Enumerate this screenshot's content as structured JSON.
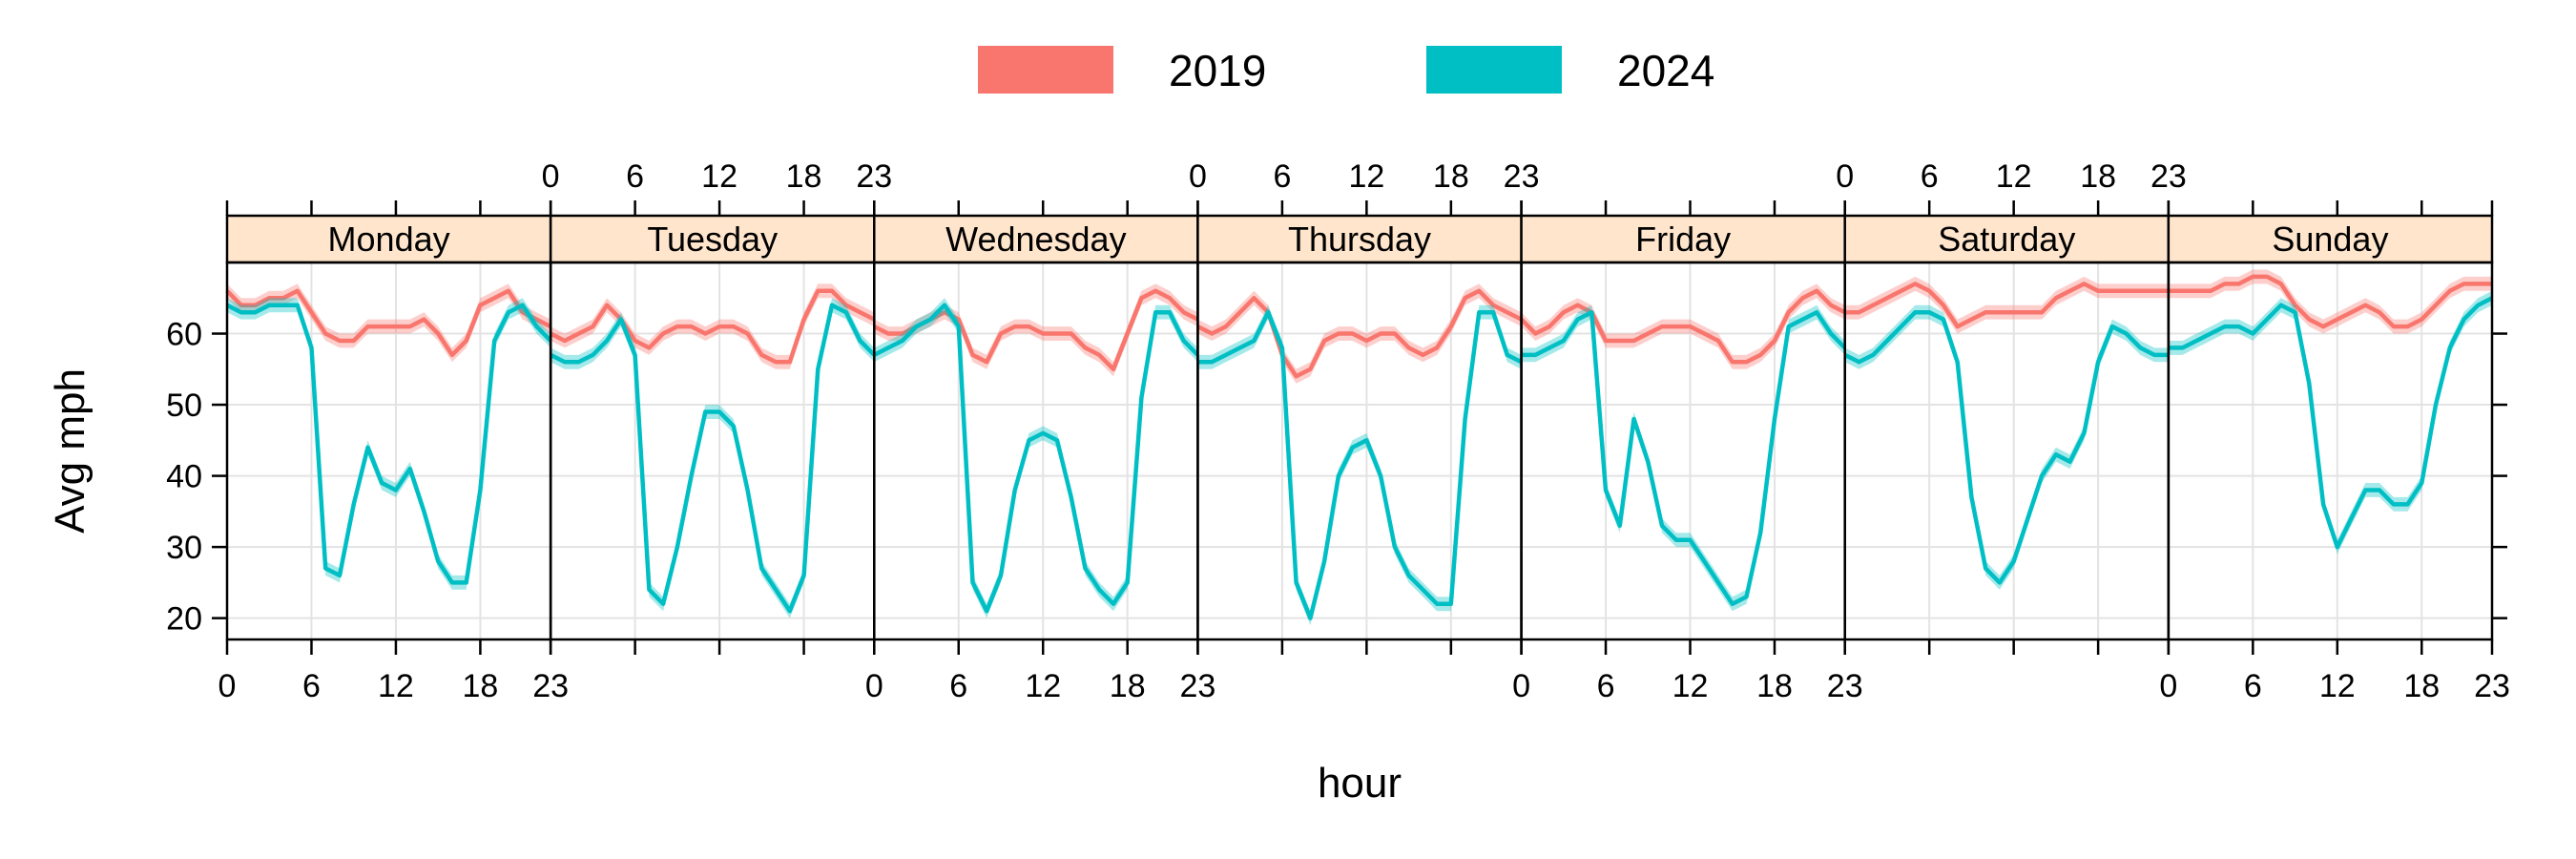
{
  "chart_data": {
    "type": "line",
    "layout": "small-multiples",
    "xlabel": "hour",
    "ylabel": "Avg mph",
    "x_ticks": [
      0,
      6,
      12,
      18,
      23
    ],
    "y_ticks": [
      20,
      30,
      40,
      50,
      60
    ],
    "xlim": [
      0,
      23
    ],
    "ylim": [
      17,
      70
    ],
    "legend": [
      {
        "name": "2019",
        "color": "#F8766D"
      },
      {
        "name": "2024",
        "color": "#00BFC4"
      }
    ],
    "panels": [
      {
        "label": "Monday",
        "series": [
          {
            "name": "2019",
            "values": [
              66,
              64,
              64,
              65,
              65,
              66,
              63,
              60,
              59,
              59,
              61,
              61,
              61,
              61,
              62,
              60,
              57,
              59,
              64,
              65,
              66,
              63,
              62,
              61
            ]
          },
          {
            "name": "2024",
            "values": [
              64,
              63,
              63,
              64,
              64,
              64,
              58,
              27,
              26,
              36,
              44,
              39,
              38,
              41,
              35,
              28,
              25,
              25,
              38,
              59,
              63,
              64,
              61,
              59
            ]
          }
        ]
      },
      {
        "label": "Tuesday",
        "series": [
          {
            "name": "2019",
            "values": [
              60,
              59,
              60,
              61,
              64,
              62,
              59,
              58,
              60,
              61,
              61,
              60,
              61,
              61,
              60,
              57,
              56,
              56,
              62,
              66,
              66,
              64,
              63,
              62
            ]
          },
          {
            "name": "2024",
            "values": [
              57,
              56,
              56,
              57,
              59,
              62,
              57,
              24,
              22,
              30,
              40,
              49,
              49,
              47,
              38,
              27,
              24,
              21,
              26,
              55,
              64,
              63,
              59,
              57
            ]
          }
        ]
      },
      {
        "label": "Wednesday",
        "series": [
          {
            "name": "2019",
            "values": [
              61,
              60,
              60,
              61,
              62,
              63,
              62,
              57,
              56,
              60,
              61,
              61,
              60,
              60,
              60,
              58,
              57,
              55,
              60,
              65,
              66,
              65,
              63,
              62
            ]
          },
          {
            "name": "2024",
            "values": [
              57,
              58,
              59,
              61,
              62,
              64,
              61,
              25,
              21,
              26,
              38,
              45,
              46,
              45,
              37,
              27,
              24,
              22,
              25,
              51,
              63,
              63,
              59,
              57
            ]
          }
        ]
      },
      {
        "label": "Thursday",
        "series": [
          {
            "name": "2019",
            "values": [
              61,
              60,
              61,
              63,
              65,
              63,
              57,
              54,
              55,
              59,
              60,
              60,
              59,
              60,
              60,
              58,
              57,
              58,
              61,
              65,
              66,
              64,
              63,
              62
            ]
          },
          {
            "name": "2024",
            "values": [
              56,
              56,
              57,
              58,
              59,
              63,
              58,
              25,
              20,
              28,
              40,
              44,
              45,
              40,
              30,
              26,
              24,
              22,
              22,
              48,
              63,
              63,
              57,
              56
            ]
          }
        ]
      },
      {
        "label": "Friday",
        "series": [
          {
            "name": "2019",
            "values": [
              62,
              60,
              61,
              63,
              64,
              63,
              59,
              59,
              59,
              60,
              61,
              61,
              61,
              60,
              59,
              56,
              56,
              57,
              59,
              63,
              65,
              66,
              64,
              63
            ]
          },
          {
            "name": "2024",
            "values": [
              57,
              57,
              58,
              59,
              62,
              63,
              38,
              33,
              48,
              42,
              33,
              31,
              31,
              28,
              25,
              22,
              23,
              32,
              48,
              61,
              62,
              63,
              60,
              58
            ]
          }
        ]
      },
      {
        "label": "Saturday",
        "series": [
          {
            "name": "2019",
            "values": [
              63,
              63,
              64,
              65,
              66,
              67,
              66,
              64,
              61,
              62,
              63,
              63,
              63,
              63,
              63,
              65,
              66,
              67,
              66,
              66,
              66,
              66,
              66,
              66
            ]
          },
          {
            "name": "2024",
            "values": [
              57,
              56,
              57,
              59,
              61,
              63,
              63,
              62,
              56,
              37,
              27,
              25,
              28,
              34,
              40,
              43,
              42,
              46,
              56,
              61,
              60,
              58,
              57,
              57
            ]
          }
        ]
      },
      {
        "label": "Sunday",
        "series": [
          {
            "name": "2019",
            "values": [
              66,
              66,
              66,
              66,
              67,
              67,
              68,
              68,
              67,
              64,
              62,
              61,
              62,
              63,
              64,
              63,
              61,
              61,
              62,
              64,
              66,
              67,
              67,
              67
            ]
          },
          {
            "name": "2024",
            "values": [
              58,
              58,
              59,
              60,
              61,
              61,
              60,
              62,
              64,
              63,
              53,
              36,
              30,
              34,
              38,
              38,
              36,
              36,
              39,
              50,
              58,
              62,
              64,
              65
            ]
          }
        ]
      }
    ]
  }
}
